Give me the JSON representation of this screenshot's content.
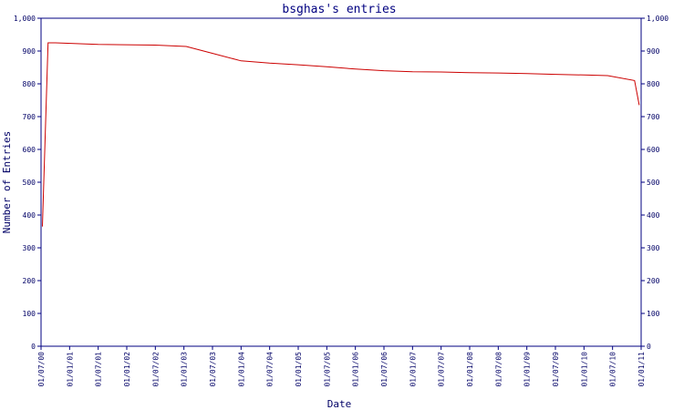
{
  "chart_data": {
    "type": "line",
    "title": "bsghas's entries",
    "xlabel": "Date",
    "ylabel": "Number of Entries",
    "ylim": [
      0,
      1000
    ],
    "yticks": [
      0,
      100,
      200,
      300,
      400,
      500,
      600,
      700,
      800,
      900,
      1000
    ],
    "ytick_labels": [
      "0",
      "100",
      "200",
      "300",
      "400",
      "500",
      "600",
      "700",
      "800",
      "900",
      "1,000"
    ],
    "x_start": "2000-07-01",
    "x_end": "2011-01-01",
    "xtick_labels": [
      "01/07/00",
      "01/01/01",
      "01/07/01",
      "01/01/02",
      "01/07/02",
      "01/01/03",
      "01/07/03",
      "01/01/04",
      "01/07/04",
      "01/01/05",
      "01/07/05",
      "01/01/06",
      "01/07/06",
      "01/01/07",
      "01/07/07",
      "01/01/08",
      "01/07/08",
      "01/01/09",
      "01/07/09",
      "01/01/10",
      "01/07/10",
      "01/01/11"
    ],
    "grid": false,
    "series": [
      {
        "name": "",
        "color": "#cc0000",
        "points": [
          {
            "x": "2000-07-10",
            "y": 365
          },
          {
            "x": "2000-08-15",
            "y": 925
          },
          {
            "x": "2000-10-01",
            "y": 925
          },
          {
            "x": "2001-07-01",
            "y": 920
          },
          {
            "x": "2002-07-01",
            "y": 918
          },
          {
            "x": "2003-01-15",
            "y": 914
          },
          {
            "x": "2003-07-01",
            "y": 893
          },
          {
            "x": "2004-01-01",
            "y": 870
          },
          {
            "x": "2004-07-01",
            "y": 863
          },
          {
            "x": "2005-01-01",
            "y": 858
          },
          {
            "x": "2005-07-01",
            "y": 852
          },
          {
            "x": "2006-01-01",
            "y": 845
          },
          {
            "x": "2006-07-01",
            "y": 840
          },
          {
            "x": "2007-01-01",
            "y": 837
          },
          {
            "x": "2007-07-01",
            "y": 836
          },
          {
            "x": "2008-01-01",
            "y": 834
          },
          {
            "x": "2008-07-01",
            "y": 833
          },
          {
            "x": "2009-01-01",
            "y": 831
          },
          {
            "x": "2009-07-01",
            "y": 829
          },
          {
            "x": "2010-01-01",
            "y": 827
          },
          {
            "x": "2010-06-01",
            "y": 825
          },
          {
            "x": "2010-11-20",
            "y": 810
          },
          {
            "x": "2010-12-20",
            "y": 735
          }
        ]
      }
    ],
    "colors": {
      "axis": "#000080",
      "text": "#000066",
      "title": "#000080",
      "line": "#cc0000",
      "background": "#ffffff"
    }
  }
}
